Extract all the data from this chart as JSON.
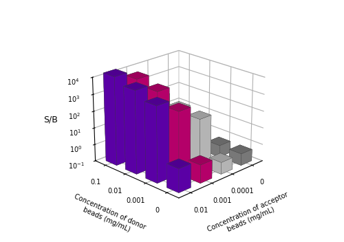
{
  "xlabel": "Concentration of acceptor\nbeads (mg/mL)",
  "ylabel": "Concentration of donor\nbeads (mg/mL)",
  "zlabel": "S/B",
  "donor_conc_labels": [
    "0",
    "0.001",
    "0.01",
    "0.1"
  ],
  "acceptor_conc_labels": [
    "0",
    "0.0001",
    "0.001",
    "0.01"
  ],
  "sb_values": [
    [
      0.5,
      0.5,
      0.5,
      0.5
    ],
    [
      0.5,
      60,
      80,
      150
    ],
    [
      1.2,
      500,
      2500,
      5000
    ],
    [
      2.5,
      3000,
      8000,
      18000
    ]
  ],
  "bar_colors_by_acceptor": [
    "#888888",
    "#cccccc",
    "#cc0077",
    "#6600bb"
  ],
  "zmin_log": -1,
  "zmax_log": 4,
  "bar_width": 0.55,
  "bar_depth": 0.55,
  "elev": 22,
  "azim": -135,
  "background_color": "#ffffff"
}
